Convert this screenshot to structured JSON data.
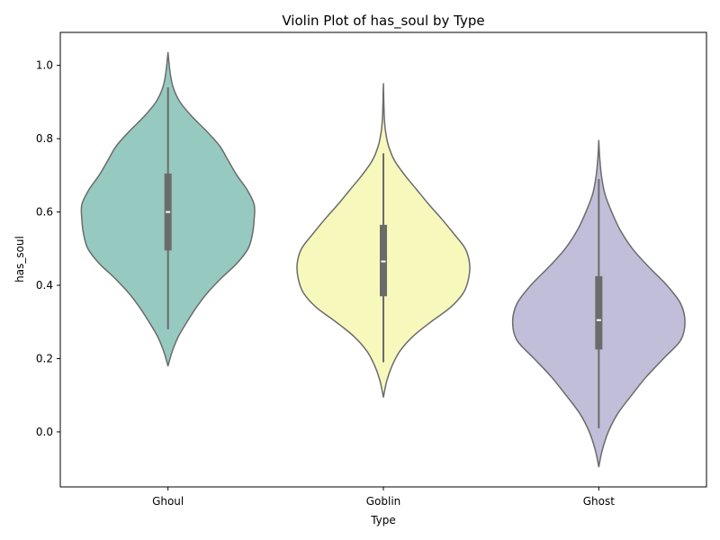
{
  "chart_data": {
    "type": "violin",
    "title": "Violin Plot of has_soul by Type",
    "xlabel": "Type",
    "ylabel": "has_soul",
    "categories": [
      "Ghoul",
      "Goblin",
      "Ghost"
    ],
    "ylim": [
      -0.15,
      1.09
    ],
    "yticks": [
      0.0,
      0.2,
      0.4,
      0.6,
      0.8,
      1.0
    ],
    "ytick_labels": [
      "0.0",
      "0.2",
      "0.4",
      "0.6",
      "0.8",
      "1.0"
    ],
    "grid": false,
    "colors": {
      "Ghoul": "#96cac0",
      "Goblin": "#f7f8bc",
      "Ghost": "#c1bed9",
      "outline": "#6b6b6b",
      "box": "#6b6b6b",
      "median": "#ffffff"
    },
    "groups": [
      {
        "name": "Ghoul",
        "kde_min": 0.18,
        "kde_max": 1.035,
        "whisker_low": 0.28,
        "q1": 0.495,
        "median": 0.6,
        "q3": 0.705,
        "whisker_high": 0.94,
        "density": [
          [
            0.18,
            0.0
          ],
          [
            0.22,
            0.05
          ],
          [
            0.26,
            0.12
          ],
          [
            0.3,
            0.22
          ],
          [
            0.34,
            0.33
          ],
          [
            0.38,
            0.46
          ],
          [
            0.42,
            0.62
          ],
          [
            0.46,
            0.8
          ],
          [
            0.5,
            0.93
          ],
          [
            0.54,
            0.98
          ],
          [
            0.58,
            1.0
          ],
          [
            0.62,
            1.0
          ],
          [
            0.66,
            0.92
          ],
          [
            0.7,
            0.8
          ],
          [
            0.74,
            0.7
          ],
          [
            0.78,
            0.6
          ],
          [
            0.82,
            0.45
          ],
          [
            0.86,
            0.28
          ],
          [
            0.9,
            0.14
          ],
          [
            0.94,
            0.06
          ],
          [
            0.98,
            0.025
          ],
          [
            1.035,
            0.0
          ]
        ]
      },
      {
        "name": "Goblin",
        "kde_min": 0.095,
        "kde_max": 0.95,
        "whisker_low": 0.19,
        "q1": 0.37,
        "median": 0.465,
        "q3": 0.565,
        "whisker_high": 0.76,
        "density": [
          [
            0.095,
            0.0
          ],
          [
            0.14,
            0.04
          ],
          [
            0.18,
            0.1
          ],
          [
            0.22,
            0.19
          ],
          [
            0.26,
            0.34
          ],
          [
            0.3,
            0.55
          ],
          [
            0.34,
            0.78
          ],
          [
            0.38,
            0.93
          ],
          [
            0.42,
            0.99
          ],
          [
            0.46,
            1.0
          ],
          [
            0.5,
            0.95
          ],
          [
            0.54,
            0.82
          ],
          [
            0.58,
            0.68
          ],
          [
            0.62,
            0.53
          ],
          [
            0.66,
            0.39
          ],
          [
            0.7,
            0.25
          ],
          [
            0.74,
            0.13
          ],
          [
            0.78,
            0.06
          ],
          [
            0.82,
            0.025
          ],
          [
            0.86,
            0.01
          ],
          [
            0.95,
            0.0
          ]
        ]
      },
      {
        "name": "Ghost",
        "kde_min": -0.095,
        "kde_max": 0.795,
        "whisker_low": 0.01,
        "q1": 0.225,
        "median": 0.305,
        "q3": 0.425,
        "whisker_high": 0.69,
        "density": [
          [
            -0.095,
            0.0
          ],
          [
            -0.05,
            0.04
          ],
          [
            0.0,
            0.11
          ],
          [
            0.05,
            0.22
          ],
          [
            0.1,
            0.38
          ],
          [
            0.15,
            0.55
          ],
          [
            0.2,
            0.75
          ],
          [
            0.25,
            0.95
          ],
          [
            0.3,
            1.0
          ],
          [
            0.35,
            0.95
          ],
          [
            0.4,
            0.79
          ],
          [
            0.45,
            0.58
          ],
          [
            0.5,
            0.39
          ],
          [
            0.55,
            0.25
          ],
          [
            0.6,
            0.15
          ],
          [
            0.65,
            0.07
          ],
          [
            0.7,
            0.03
          ],
          [
            0.75,
            0.01
          ],
          [
            0.795,
            0.0
          ]
        ]
      }
    ]
  }
}
